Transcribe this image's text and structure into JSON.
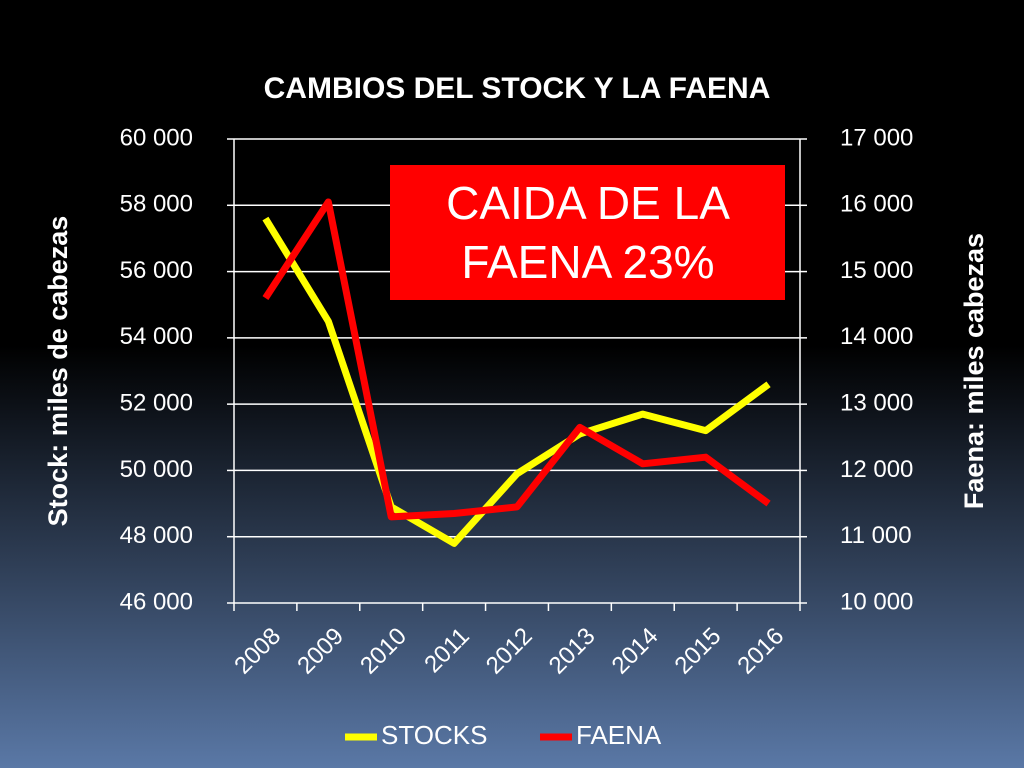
{
  "chart_data": {
    "type": "line",
    "title": "CAMBIOS DEL STOCK Y LA FAENA",
    "y_label": "Stock: miles de cabezas",
    "y2_label": "Faena: miles cabezas",
    "annotation": [
      "CAIDA DE LA",
      "FAENA 23%"
    ],
    "categories": [
      "2008",
      "2009",
      "2010",
      "2011",
      "2012",
      "2013",
      "2014",
      "2015",
      "2016"
    ],
    "series": [
      {
        "name": "STOCKS",
        "color": "#ffff00",
        "values": [
          57600,
          54500,
          48900,
          47800,
          49900,
          51100,
          51700,
          51200,
          52600
        ]
      },
      {
        "name": "FAENA",
        "color": "#ff0000",
        "axis": "y2",
        "values": [
          14600,
          16050,
          11300,
          11350,
          11450,
          12650,
          12100,
          12200,
          11500
        ]
      }
    ],
    "ylim": [
      46000,
      60000
    ],
    "yticks": [
      {
        "value": 46000,
        "label": "46 000"
      },
      {
        "value": 48000,
        "label": "48 000"
      },
      {
        "value": 50000,
        "label": "50 000"
      },
      {
        "value": 52000,
        "label": "52 000"
      },
      {
        "value": 54000,
        "label": "54 000"
      },
      {
        "value": 56000,
        "label": "56 000"
      },
      {
        "value": 58000,
        "label": "58 000"
      },
      {
        "value": 60000,
        "label": "60 000"
      }
    ],
    "y2lim": [
      10000,
      17000
    ],
    "y2ticks": [
      {
        "value": 10000,
        "label": "10 000"
      },
      {
        "value": 11000,
        "label": "11 000"
      },
      {
        "value": 12000,
        "label": "12 000"
      },
      {
        "value": 13000,
        "label": "13 000"
      },
      {
        "value": 14000,
        "label": "14 000"
      },
      {
        "value": 15000,
        "label": "15 000"
      },
      {
        "value": 16000,
        "label": "16 000"
      },
      {
        "value": 17000,
        "label": "17 000"
      }
    ],
    "grid": true
  }
}
